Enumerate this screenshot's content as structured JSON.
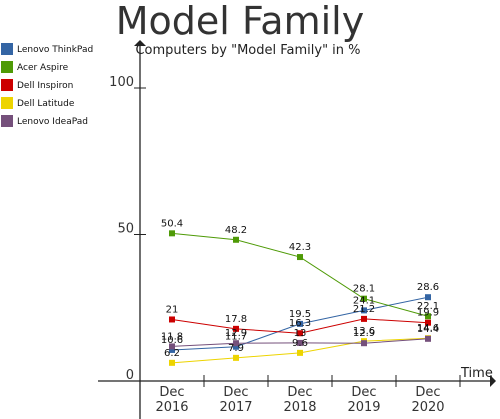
{
  "chart_data": {
    "type": "line",
    "title": "Model Family",
    "subtitle": "Computers by \"Model Family\" in %",
    "xlabel": "Time",
    "ylabel": "",
    "x": [
      "Dec 2016",
      "Dec 2017",
      "Dec 2018",
      "Dec 2019",
      "Dec 2020"
    ],
    "x_ticks": [
      {
        "line1": "Dec",
        "line2": "2016"
      },
      {
        "line1": "Dec",
        "line2": "2017"
      },
      {
        "line1": "Dec",
        "line2": "2018"
      },
      {
        "line1": "Dec",
        "line2": "2019"
      },
      {
        "line1": "Dec",
        "line2": "2020"
      }
    ],
    "y_ticks": [
      0,
      50,
      100
    ],
    "ylim": [
      0,
      100
    ],
    "legend_position": "top-left",
    "grid": false,
    "series": [
      {
        "name": "Lenovo ThinkPad",
        "color": "#3465a4",
        "values": [
          10.6,
          11.7,
          19.5,
          24.1,
          28.6
        ]
      },
      {
        "name": "Acer Aspire",
        "color": "#4e9a06",
        "values": [
          50.4,
          48.2,
          42.3,
          28.1,
          22.1
        ]
      },
      {
        "name": "Dell Inspiron",
        "color": "#cc0000",
        "values": [
          21,
          17.8,
          16.3,
          21.2,
          19.9
        ]
      },
      {
        "name": "Dell Latitude",
        "color": "#edd400",
        "values": [
          6.2,
          7.9,
          9.6,
          13.6,
          14.6
        ]
      },
      {
        "name": "Lenovo IdeaPad",
        "color": "#75507b",
        "values": [
          11.8,
          12.9,
          13,
          12.9,
          14.4
        ]
      }
    ]
  }
}
